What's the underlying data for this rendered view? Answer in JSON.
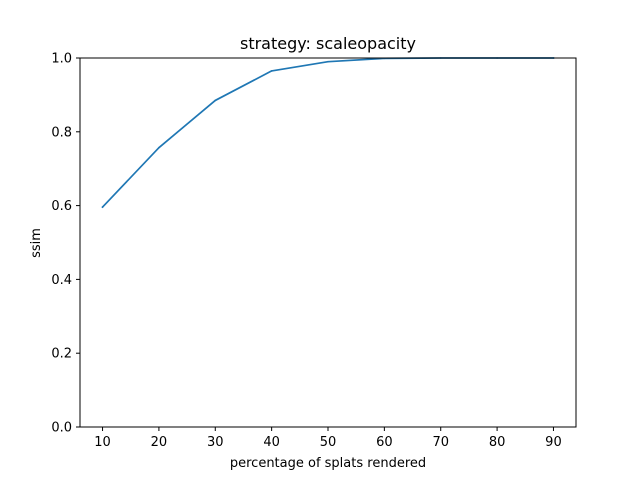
{
  "chart_data": {
    "type": "line",
    "title": "strategy: scaleopacity",
    "xlabel": "percentage of splats rendered",
    "ylabel": "ssim",
    "xlim": [
      6,
      94
    ],
    "ylim": [
      0.0,
      1.0
    ],
    "xticks": [
      10,
      20,
      30,
      40,
      50,
      60,
      70,
      80,
      90
    ],
    "yticks": [
      0.0,
      0.2,
      0.4,
      0.6,
      0.8,
      1.0
    ],
    "xtick_labels": [
      "10",
      "20",
      "30",
      "40",
      "50",
      "60",
      "70",
      "80",
      "90"
    ],
    "ytick_labels": [
      "0.0",
      "0.2",
      "0.4",
      "0.6",
      "0.8",
      "1.0"
    ],
    "grid": false,
    "series": [
      {
        "color": "#1f77b4",
        "x": [
          10,
          20,
          30,
          40,
          50,
          60,
          70,
          80,
          90
        ],
        "y": [
          0.596,
          0.757,
          0.885,
          0.965,
          0.99,
          0.999,
          1.0,
          1.0,
          1.0
        ]
      }
    ]
  }
}
